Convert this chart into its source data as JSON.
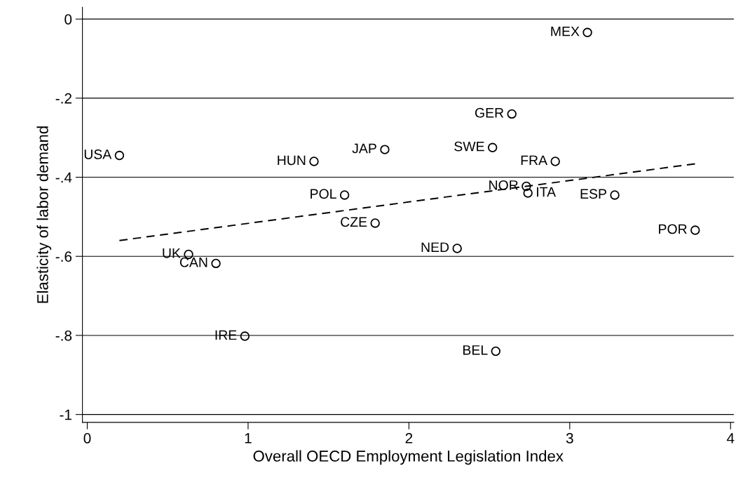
{
  "chart_data": {
    "type": "scatter",
    "xlabel": "Overall OECD Employment Legislation Index",
    "ylabel": "Elasticity of labor demand",
    "xlim": [
      -0.03,
      4.02
    ],
    "ylim": [
      -1.02,
      0.03
    ],
    "xticks": [
      0,
      1,
      2,
      3,
      4
    ],
    "yticks": [
      {
        "value": 0,
        "label": "0"
      },
      {
        "value": -0.2,
        "label": "-.2"
      },
      {
        "value": -0.4,
        "label": "-.4"
      },
      {
        "value": -0.6,
        "label": "-.6"
      },
      {
        "value": -0.8,
        "label": "-.8"
      },
      {
        "value": -1,
        "label": "-1"
      }
    ],
    "grid": "y",
    "legend": false,
    "series": [
      {
        "type": "scatter",
        "marker": "circle",
        "color": "#000000",
        "x": [
          0.2,
          1.41,
          1.85,
          3.11,
          2.64,
          2.52,
          2.91,
          2.73,
          2.74,
          3.28,
          1.6,
          1.79,
          3.78,
          2.3,
          0.63,
          0.8,
          0.98,
          2.54
        ],
        "values": [
          -0.345,
          -0.36,
          -0.33,
          -0.034,
          -0.24,
          -0.325,
          -0.36,
          -0.423,
          -0.44,
          -0.445,
          -0.445,
          -0.516,
          -0.534,
          -0.58,
          -0.595,
          -0.618,
          -0.802,
          -0.84
        ]
      },
      {
        "type": "line",
        "line_style": "dashed",
        "color": "#000000",
        "x": [
          0.2,
          3.78
        ],
        "values": [
          -0.56,
          -0.366
        ]
      }
    ],
    "annotations": [
      {
        "text": "USA",
        "x": 0.2,
        "y": -0.345
      },
      {
        "text": "HUN",
        "x": 1.41,
        "y": -0.36
      },
      {
        "text": "JAP",
        "x": 1.85,
        "y": -0.33
      },
      {
        "text": "MEX",
        "x": 3.11,
        "y": -0.034
      },
      {
        "text": "GER",
        "x": 2.64,
        "y": -0.24
      },
      {
        "text": "SWE",
        "x": 2.52,
        "y": -0.325
      },
      {
        "text": "FRA",
        "x": 2.91,
        "y": -0.36
      },
      {
        "text": "NOR",
        "x": 2.73,
        "y": -0.423
      },
      {
        "text": "ITA",
        "x": 2.74,
        "y": -0.44
      },
      {
        "text": "ESP",
        "x": 3.28,
        "y": -0.445
      },
      {
        "text": "POL",
        "x": 1.6,
        "y": -0.445
      },
      {
        "text": "CZE",
        "x": 1.79,
        "y": -0.516
      },
      {
        "text": "POR",
        "x": 3.78,
        "y": -0.534
      },
      {
        "text": "NED",
        "x": 2.3,
        "y": -0.58
      },
      {
        "text": "UK",
        "x": 0.63,
        "y": -0.595
      },
      {
        "text": "CAN",
        "x": 0.8,
        "y": -0.618
      },
      {
        "text": "IRE",
        "x": 0.98,
        "y": -0.802
      },
      {
        "text": "BEL",
        "x": 2.54,
        "y": -0.84
      }
    ]
  }
}
